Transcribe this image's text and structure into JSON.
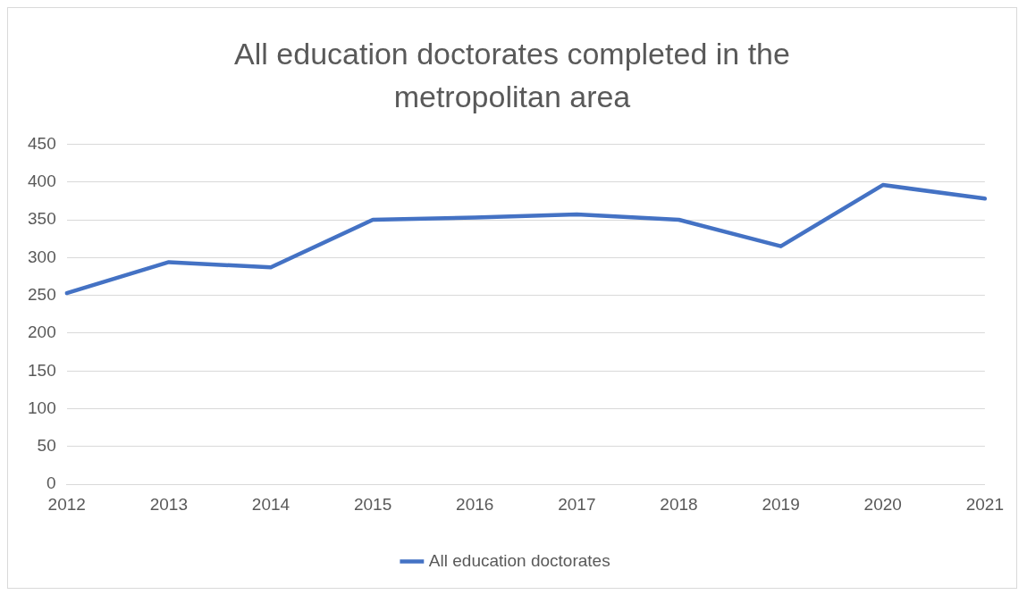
{
  "chart_data": {
    "type": "line",
    "title": "All education doctorates completed in the metropolitan area",
    "categories": [
      "2012",
      "2013",
      "2014",
      "2015",
      "2016",
      "2017",
      "2018",
      "2019",
      "2020",
      "2021"
    ],
    "series": [
      {
        "name": "All education doctorates",
        "color": "#4472c4",
        "values": [
          253,
          294,
          287,
          350,
          353,
          357,
          350,
          315,
          396,
          378
        ]
      }
    ],
    "ylim": [
      0,
      450
    ],
    "yticks": [
      0,
      50,
      100,
      150,
      200,
      250,
      300,
      350,
      400,
      450
    ],
    "grid": "y",
    "legend": "bottom",
    "marker": "none",
    "line_style": "solid"
  }
}
